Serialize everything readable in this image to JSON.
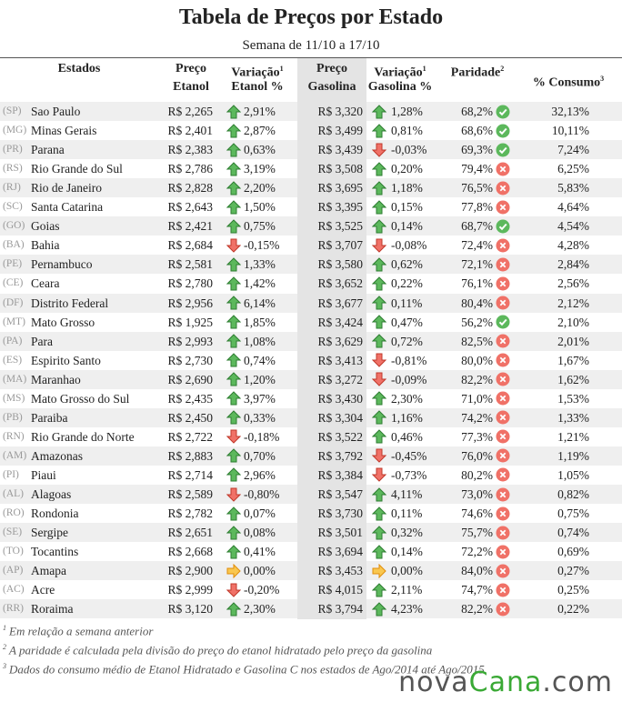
{
  "title": "Tabela de Preços por Estado",
  "subtitle": "Semana de 11/10 a 17/10",
  "header": [
    {
      "lines": [
        "Estados"
      ]
    },
    {
      "lines": [
        "Preço",
        "Etanol"
      ]
    },
    {
      "lines": [
        "Variação",
        "Etanol %"
      ],
      "note": "1"
    },
    {
      "lines": [
        "Preço",
        "Gasolina"
      ]
    },
    {
      "lines": [
        "Variação",
        "Gasolina %"
      ],
      "note": "1"
    },
    {
      "lines": [
        "Paridade"
      ],
      "note": "2"
    },
    {
      "lines": [
        "% Consumo"
      ],
      "note": "3"
    }
  ],
  "rows": [
    [
      "(SP)",
      "Sao Paulo",
      "R$ 2,265",
      "up",
      "2,91%",
      "R$ 3,320",
      "up",
      "1,28%",
      "68,2%",
      "ok",
      "32,13%"
    ],
    [
      "(MG)",
      "Minas Gerais",
      "R$ 2,401",
      "up",
      "2,87%",
      "R$ 3,499",
      "up",
      "0,81%",
      "68,6%",
      "ok",
      "10,11%"
    ],
    [
      "(PR)",
      "Parana",
      "R$ 2,383",
      "up",
      "0,63%",
      "R$ 3,439",
      "down",
      "-0,03%",
      "69,3%",
      "ok",
      "7,24%"
    ],
    [
      "(RS)",
      "Rio Grande do Sul",
      "R$ 2,786",
      "up",
      "3,19%",
      "R$ 3,508",
      "up",
      "0,20%",
      "79,4%",
      "no",
      "6,25%"
    ],
    [
      "(RJ)",
      "Rio de Janeiro",
      "R$ 2,828",
      "up",
      "2,20%",
      "R$ 3,695",
      "up",
      "1,18%",
      "76,5%",
      "no",
      "5,83%"
    ],
    [
      "(SC)",
      "Santa Catarina",
      "R$ 2,643",
      "up",
      "1,50%",
      "R$ 3,395",
      "up",
      "0,15%",
      "77,8%",
      "no",
      "4,64%"
    ],
    [
      "(GO)",
      "Goias",
      "R$ 2,421",
      "up",
      "0,75%",
      "R$ 3,525",
      "up",
      "0,14%",
      "68,7%",
      "ok",
      "4,54%"
    ],
    [
      "(BA)",
      "Bahia",
      "R$ 2,684",
      "down",
      "-0,15%",
      "R$ 3,707",
      "down",
      "-0,08%",
      "72,4%",
      "no",
      "4,28%"
    ],
    [
      "(PE)",
      "Pernambuco",
      "R$ 2,581",
      "up",
      "1,33%",
      "R$ 3,580",
      "up",
      "0,62%",
      "72,1%",
      "no",
      "2,84%"
    ],
    [
      "(CE)",
      "Ceara",
      "R$ 2,780",
      "up",
      "1,42%",
      "R$ 3,652",
      "up",
      "0,22%",
      "76,1%",
      "no",
      "2,56%"
    ],
    [
      "(DF)",
      "Distrito Federal",
      "R$ 2,956",
      "up",
      "6,14%",
      "R$ 3,677",
      "up",
      "0,11%",
      "80,4%",
      "no",
      "2,12%"
    ],
    [
      "(MT)",
      "Mato Grosso",
      "R$ 1,925",
      "up",
      "1,85%",
      "R$ 3,424",
      "up",
      "0,47%",
      "56,2%",
      "ok",
      "2,10%"
    ],
    [
      "(PA)",
      "Para",
      "R$ 2,993",
      "up",
      "1,08%",
      "R$ 3,629",
      "up",
      "0,72%",
      "82,5%",
      "no",
      "2,01%"
    ],
    [
      "(ES)",
      "Espirito Santo",
      "R$ 2,730",
      "up",
      "0,74%",
      "R$ 3,413",
      "down",
      "-0,81%",
      "80,0%",
      "no",
      "1,67%"
    ],
    [
      "(MA)",
      "Maranhao",
      "R$ 2,690",
      "up",
      "1,20%",
      "R$ 3,272",
      "down",
      "-0,09%",
      "82,2%",
      "no",
      "1,62%"
    ],
    [
      "(MS)",
      "Mato Grosso do Sul",
      "R$ 2,435",
      "up",
      "3,97%",
      "R$ 3,430",
      "up",
      "2,30%",
      "71,0%",
      "no",
      "1,53%"
    ],
    [
      "(PB)",
      "Paraiba",
      "R$ 2,450",
      "up",
      "0,33%",
      "R$ 3,304",
      "up",
      "1,16%",
      "74,2%",
      "no",
      "1,33%"
    ],
    [
      "(RN)",
      "Rio Grande do Norte",
      "R$ 2,722",
      "down",
      "-0,18%",
      "R$ 3,522",
      "up",
      "0,46%",
      "77,3%",
      "no",
      "1,21%"
    ],
    [
      "(AM)",
      "Amazonas",
      "R$ 2,883",
      "up",
      "0,70%",
      "R$ 3,792",
      "down",
      "-0,45%",
      "76,0%",
      "no",
      "1,19%"
    ],
    [
      "(PI)",
      "Piaui",
      "R$ 2,714",
      "up",
      "2,96%",
      "R$ 3,384",
      "down",
      "-0,73%",
      "80,2%",
      "no",
      "1,05%"
    ],
    [
      "(AL)",
      "Alagoas",
      "R$ 2,589",
      "down",
      "-0,80%",
      "R$ 3,547",
      "up",
      "4,11%",
      "73,0%",
      "no",
      "0,82%"
    ],
    [
      "(RO)",
      "Rondonia",
      "R$ 2,782",
      "up",
      "0,07%",
      "R$ 3,730",
      "up",
      "0,11%",
      "74,6%",
      "no",
      "0,75%"
    ],
    [
      "(SE)",
      "Sergipe",
      "R$ 2,651",
      "up",
      "0,08%",
      "R$ 3,501",
      "up",
      "0,32%",
      "75,7%",
      "no",
      "0,74%"
    ],
    [
      "(TO)",
      "Tocantins",
      "R$ 2,668",
      "up",
      "0,41%",
      "R$ 3,694",
      "up",
      "0,14%",
      "72,2%",
      "no",
      "0,69%"
    ],
    [
      "(AP)",
      "Amapa",
      "R$ 2,900",
      "flat",
      "0,00%",
      "R$ 3,453",
      "flat",
      "0,00%",
      "84,0%",
      "no",
      "0,27%"
    ],
    [
      "(AC)",
      "Acre",
      "R$ 2,999",
      "down",
      "-0,20%",
      "R$ 4,015",
      "up",
      "2,11%",
      "74,7%",
      "no",
      "0,25%"
    ],
    [
      "(RR)",
      "Roraima",
      "R$ 3,120",
      "up",
      "2,30%",
      "R$ 3,794",
      "up",
      "4,23%",
      "82,2%",
      "no",
      "0,22%"
    ]
  ],
  "footnotes": [
    {
      "note": "1",
      "text": "Em relação a semana anterior"
    },
    {
      "note": "2",
      "text": "A paridade é calculada pela divisão do preço do etanol hidratado pelo preço da gasolina"
    },
    {
      "note": "3",
      "text": "Dados do consumo médio de Etanol Hidratado e Gasolina C nos estados de Ago/2014 até Ago/2015"
    }
  ],
  "logo": [
    "nova",
    "Cana",
    ".com"
  ]
}
